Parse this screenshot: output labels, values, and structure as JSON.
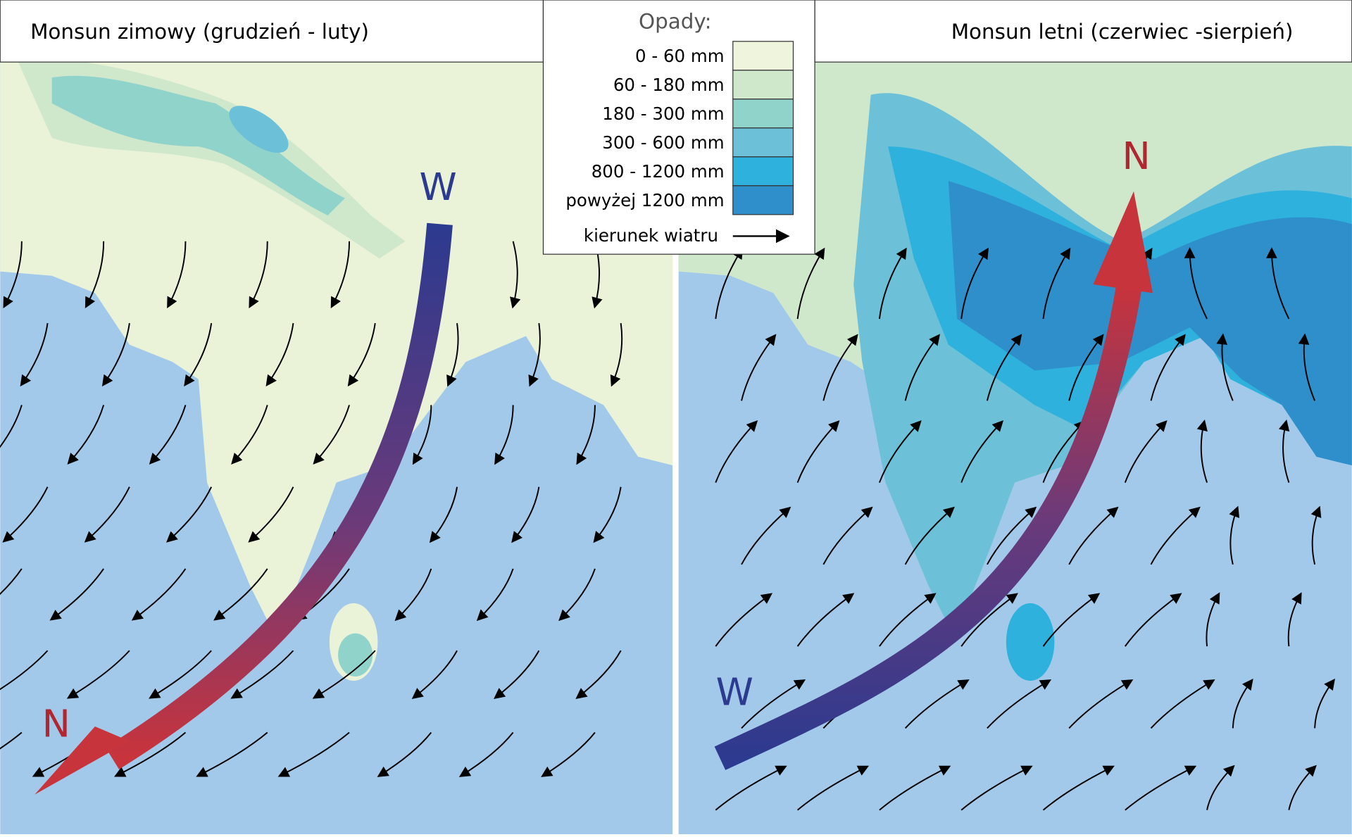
{
  "left_panel": {
    "title": "Monsun zimowy (grudzień - luty)",
    "label_start": "W",
    "label_end": "N"
  },
  "right_panel": {
    "title": "Monsun letni (czerwiec -sierpień)",
    "label_start": "W",
    "label_end": "N"
  },
  "legend": {
    "title": "Opady:",
    "items": [
      {
        "label": "0 - 60 mm",
        "color": "#eef5dc"
      },
      {
        "label": "60 - 180 mm",
        "color": "#cfe8cc"
      },
      {
        "label": "180 - 300 mm",
        "color": "#8fd3cb"
      },
      {
        "label": "300 - 600 mm",
        "color": "#6cc0d8"
      },
      {
        "label": "800 - 1200 mm",
        "color": "#2fb1dd"
      },
      {
        "label": "powyżej 1200 mm",
        "color": "#2f8fca"
      }
    ],
    "wind_label": "kierunek wiatru"
  }
}
